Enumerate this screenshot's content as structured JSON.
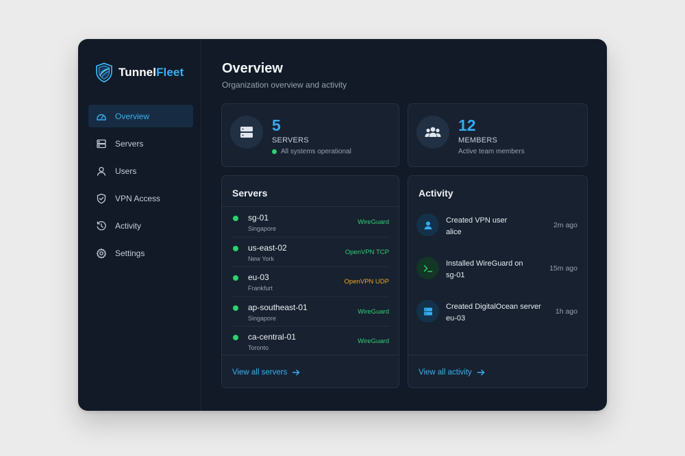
{
  "brand": {
    "name_part1": "Tunnel",
    "name_part2": "Fleet"
  },
  "sidebar": {
    "items": [
      {
        "label": "Overview",
        "icon": "dashboard-icon",
        "active": true
      },
      {
        "label": "Servers",
        "icon": "server-icon"
      },
      {
        "label": "Users",
        "icon": "user-icon"
      },
      {
        "label": "VPN Access",
        "icon": "shield-check-icon"
      },
      {
        "label": "Activity",
        "icon": "history-icon"
      },
      {
        "label": "Settings",
        "icon": "gear-icon"
      }
    ]
  },
  "header": {
    "title": "Overview",
    "subtitle": "Organization overview and activity"
  },
  "stats": {
    "servers": {
      "value": "5",
      "label": "SERVERS",
      "note": "All systems operational",
      "icon": "server-icon"
    },
    "members": {
      "value": "12",
      "label": "MEMBERS",
      "note": "Active team members",
      "icon": "team-icon"
    }
  },
  "servers_card": {
    "title": "Servers",
    "rows": [
      {
        "name": "sg-01",
        "location": "Singapore",
        "protocol": "WireGuard",
        "protocol_color": "#2fd06f"
      },
      {
        "name": "us-east-02",
        "location": "New York",
        "protocol": "OpenVPN TCP",
        "protocol_color": "#2fd06f"
      },
      {
        "name": "eu-03",
        "location": "Frankfurt",
        "protocol": "OpenVPN UDP",
        "protocol_color": "#f0a623"
      },
      {
        "name": "ap-southeast-01",
        "location": "Singapore",
        "protocol": "WireGuard",
        "protocol_color": "#2fd06f"
      },
      {
        "name": "ca-central-01",
        "location": "Toronto",
        "protocol": "WireGuard",
        "protocol_color": "#2fd06f"
      }
    ],
    "link": "View all servers"
  },
  "activity_card": {
    "title": "Activity",
    "rows": [
      {
        "line1": "Created VPN user",
        "line2": "alice",
        "time": "2m ago",
        "icon": "user-icon"
      },
      {
        "line1": "Installed WireGuard on",
        "line2": "sg-01",
        "time": "15m ago",
        "icon": "terminal-icon"
      },
      {
        "line1": "Created DigitalOcean server",
        "line2": "eu-03",
        "time": "1h ago",
        "icon": "server-icon"
      }
    ],
    "link": "View all activity"
  },
  "colors": {
    "accent": "#38aef5",
    "success": "#2fd06f",
    "warning": "#f0a623",
    "background": "#111a26"
  }
}
